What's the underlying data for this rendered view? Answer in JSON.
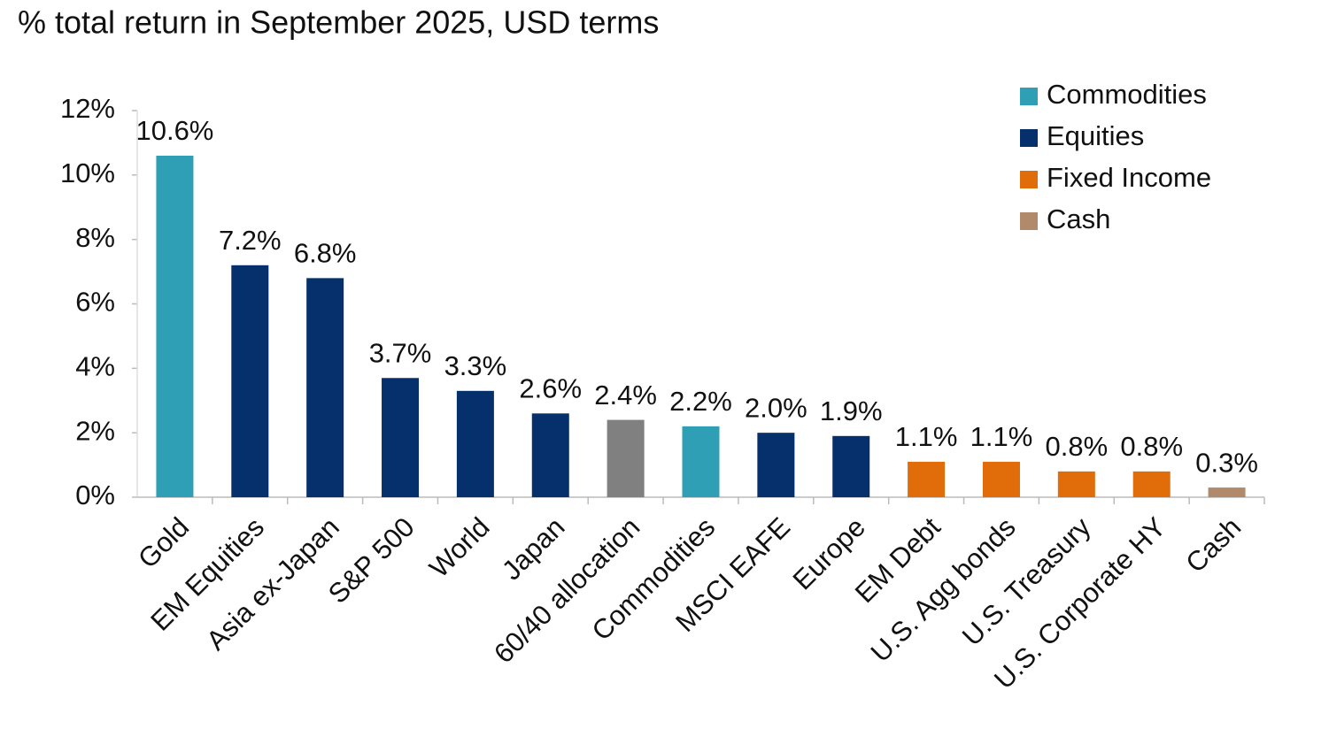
{
  "chart_data": {
    "type": "bar",
    "title": "% total return in September 2025, USD terms",
    "categories": [
      "Gold",
      "EM Equities",
      "Asia ex-Japan",
      "S&P 500",
      "World",
      "Japan",
      "60/40 allocation",
      "Commodities",
      "MSCI EAFE",
      "Europe",
      "EM Debt",
      "U.S. Agg bonds",
      "U.S. Treasury",
      "U.S. Corporate HY",
      "Cash"
    ],
    "values": [
      10.6,
      7.2,
      6.8,
      3.7,
      3.3,
      2.6,
      2.4,
      2.2,
      2.0,
      1.9,
      1.1,
      1.1,
      0.8,
      0.8,
      0.3
    ],
    "value_labels": [
      "10.6%",
      "7.2%",
      "6.8%",
      "3.7%",
      "3.3%",
      "2.6%",
      "2.4%",
      "2.2%",
      "2.0%",
      "1.9%",
      "1.1%",
      "1.1%",
      "0.8%",
      "0.8%",
      "0.3%"
    ],
    "colors": [
      "#2e9fb5",
      "#06306b",
      "#06306b",
      "#06306b",
      "#06306b",
      "#06306b",
      "#808080",
      "#2e9fb5",
      "#06306b",
      "#06306b",
      "#e06c0a",
      "#e06c0a",
      "#e06c0a",
      "#e06c0a",
      "#b08a6a"
    ],
    "legend": [
      {
        "name": "Commodities",
        "color": "#2e9fb5"
      },
      {
        "name": "Equities",
        "color": "#06306b"
      },
      {
        "name": "Fixed Income",
        "color": "#e06c0a"
      },
      {
        "name": "Cash",
        "color": "#b08a6a"
      }
    ],
    "ylim": [
      0,
      12
    ],
    "yticks": [
      {
        "value": 0,
        "label": "0%"
      },
      {
        "value": 2,
        "label": "2%"
      },
      {
        "value": 4,
        "label": "4%"
      },
      {
        "value": 6,
        "label": "6%"
      },
      {
        "value": 8,
        "label": "8%"
      },
      {
        "value": 10,
        "label": "10%"
      },
      {
        "value": 12,
        "label": "12%"
      }
    ],
    "legend_position": "upper right"
  }
}
